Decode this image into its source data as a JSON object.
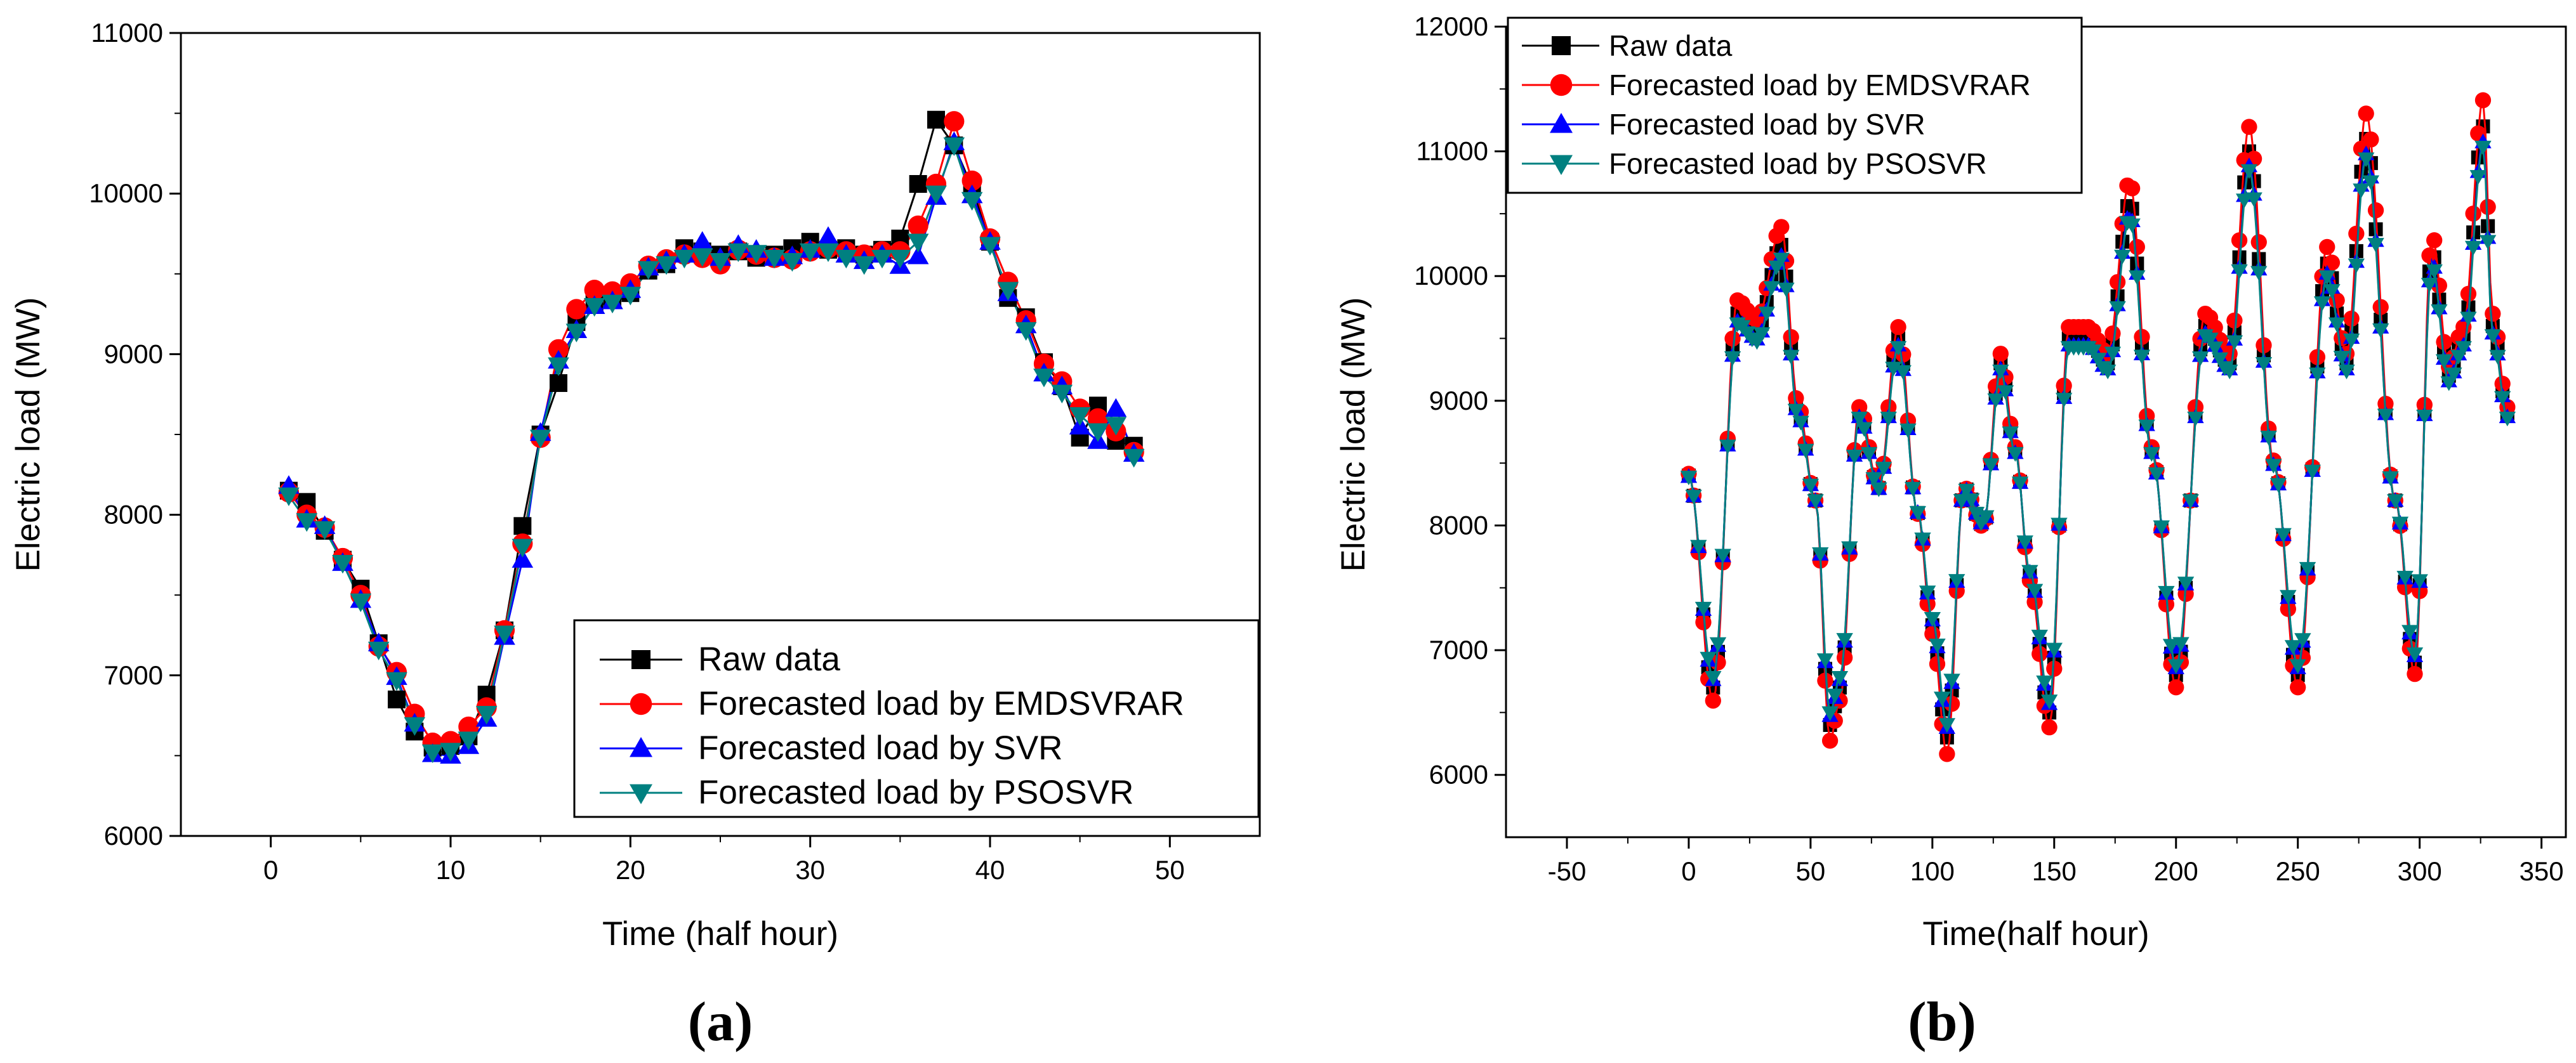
{
  "series_styles": [
    {
      "color": "#000000",
      "marker": "square"
    },
    {
      "color": "#ff0000",
      "marker": "circle"
    },
    {
      "color": "#0000ff",
      "marker": "triangle-up"
    },
    {
      "color": "#008080",
      "marker": "triangle-down"
    }
  ],
  "chart_data": [
    {
      "panel_label": "(a)",
      "type": "line",
      "title": "",
      "xlabel": "Time (half hour)",
      "ylabel": "Electric load (MW)",
      "xlim": [
        -5,
        55
      ],
      "ylim": [
        6000,
        11000
      ],
      "xticks": [
        "0",
        "10",
        "20",
        "30",
        "40",
        "50"
      ],
      "yticks": [
        "6000",
        "7000",
        "8000",
        "9000",
        "10000",
        "11000"
      ],
      "legend_position": "bottom-right",
      "x": [
        1,
        2,
        3,
        4,
        5,
        6,
        7,
        8,
        9,
        10,
        11,
        12,
        13,
        14,
        15,
        16,
        17,
        18,
        19,
        20,
        21,
        22,
        23,
        24,
        25,
        26,
        27,
        28,
        29,
        30,
        31,
        32,
        33,
        34,
        35,
        36,
        37,
        38,
        39,
        40,
        41,
        42,
        43,
        44,
        45,
        46,
        47,
        48
      ],
      "series": [
        {
          "name": "Raw data",
          "values": [
            8150,
            8080,
            7900,
            7720,
            7540,
            7200,
            6850,
            6650,
            6550,
            6560,
            6620,
            6880,
            7280,
            7930,
            8500,
            8820,
            9200,
            9320,
            9350,
            9380,
            9520,
            9560,
            9660,
            9640,
            9620,
            9640,
            9600,
            9620,
            9660,
            9700,
            9650,
            9660,
            9620,
            9650,
            9720,
            10060,
            10460,
            10300,
            10040,
            9700,
            9350,
            9230,
            8950,
            8800,
            8480,
            8680,
            8460,
            8430
          ]
        },
        {
          "name": "Forecasted load by EMDSVRAR",
          "values": [
            8140,
            8000,
            7920,
            7730,
            7500,
            7180,
            7020,
            6760,
            6580,
            6590,
            6680,
            6800,
            7280,
            7820,
            8480,
            9030,
            9280,
            9400,
            9390,
            9440,
            9550,
            9590,
            9620,
            9600,
            9560,
            9650,
            9620,
            9600,
            9590,
            9640,
            9660,
            9640,
            9620,
            9640,
            9640,
            9800,
            10060,
            10450,
            10080,
            9720,
            9450,
            9210,
            8940,
            8830,
            8660,
            8600,
            8520,
            8390
          ]
        },
        {
          "name": "Forecasted load by SVR",
          "values": [
            8180,
            7970,
            7930,
            7700,
            7470,
            7200,
            6990,
            6700,
            6510,
            6500,
            6560,
            6730,
            7240,
            7720,
            8510,
            8960,
            9150,
            9300,
            9330,
            9400,
            9540,
            9580,
            9620,
            9700,
            9600,
            9680,
            9650,
            9600,
            9610,
            9650,
            9730,
            9620,
            9580,
            9620,
            9550,
            9610,
            9980,
            10320,
            9990,
            9700,
            9380,
            9180,
            8880,
            8800,
            8550,
            8460,
            8660,
            8380
          ]
        },
        {
          "name": "Forecasted load by PSOSVR",
          "values": [
            8120,
            7960,
            7910,
            7700,
            7460,
            7160,
            6970,
            6690,
            6520,
            6530,
            6600,
            6760,
            7260,
            7800,
            8480,
            8930,
            9140,
            9300,
            9320,
            9370,
            9530,
            9560,
            9600,
            9610,
            9580,
            9640,
            9630,
            9600,
            9580,
            9640,
            9640,
            9600,
            9560,
            9600,
            9600,
            9700,
            10000,
            10300,
            9960,
            9680,
            9400,
            9150,
            8860,
            8760,
            8620,
            8520,
            8560,
            8360
          ]
        }
      ]
    },
    {
      "panel_label": "(b)",
      "type": "line",
      "title": "",
      "xlabel": "Time(half hour)",
      "ylabel": "Electric load (MW)",
      "xlim": [
        -75,
        360
      ],
      "ylim": [
        5500,
        12000
      ],
      "xticks": [
        "-50",
        "0",
        "50",
        "100",
        "150",
        "200",
        "250",
        "300",
        "350"
      ],
      "yticks": [
        "6000",
        "7000",
        "8000",
        "9000",
        "10000",
        "11000",
        "12000"
      ],
      "legend_position": "top-left",
      "series_names": [
        "Raw data",
        "Forecasted load by EMDSVRAR",
        "Forecasted load by SVR",
        "Forecasted load by PSOSVR"
      ],
      "keypoints_x": [
        0,
        10,
        20,
        28,
        38,
        45,
        52,
        58,
        62,
        70,
        78,
        86,
        94,
        100,
        106,
        113,
        121,
        128,
        134,
        140,
        148,
        156,
        164,
        172,
        181,
        190,
        200,
        212,
        222,
        230,
        240,
        250,
        262,
        270,
        278,
        290,
        298,
        305,
        312,
        318,
        326,
        330,
        336
      ],
      "keypoints_y": [
        8400,
        6700,
        9700,
        9550,
        10250,
        8900,
        8200,
        6400,
        6700,
        8900,
        8300,
        9500,
        8100,
        7200,
        6300,
        8300,
        8000,
        9300,
        8600,
        7600,
        6500,
        9500,
        9500,
        9300,
        10600,
        8600,
        6800,
        9600,
        9300,
        11000,
        8500,
        6800,
        10100,
        9300,
        11100,
        8200,
        6900,
        10200,
        9200,
        9500,
        11200,
        9600,
        8900
      ],
      "series_offsets": [
        0,
        150,
        -80,
        -120
      ]
    }
  ]
}
